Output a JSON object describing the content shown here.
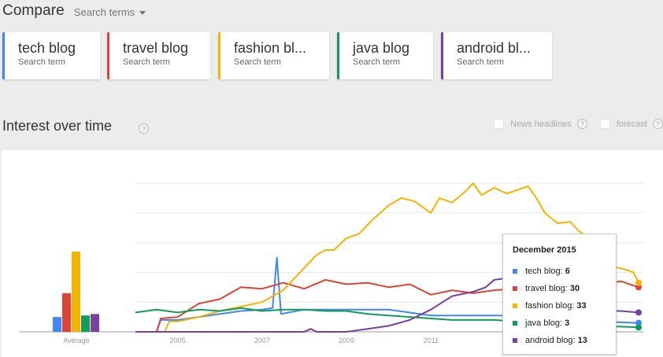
{
  "header": {
    "title": "Compare",
    "dropdown_label": "Search terms"
  },
  "terms": [
    {
      "label": "tech blog",
      "sub": "Search term",
      "color": "#4285f4"
    },
    {
      "label": "travel blog",
      "sub": "Search term",
      "color": "#db4437"
    },
    {
      "label": "fashion bl...",
      "sub": "Search term",
      "color": "#f4b400"
    },
    {
      "label": "java blog",
      "sub": "Search term",
      "color": "#0f9d58"
    },
    {
      "label": "android bl...",
      "sub": "Search term",
      "color": "#7b3f9e"
    }
  ],
  "section": {
    "title": "Interest over time",
    "help": "?",
    "options": [
      {
        "label": "News headlines",
        "checked": false
      },
      {
        "label": "forecast",
        "checked": false
      }
    ]
  },
  "tooltip": {
    "title": "December 2015",
    "rows": [
      {
        "name": "tech blog",
        "value": "6",
        "color": "#4285f4"
      },
      {
        "name": "travel blog",
        "value": "30",
        "color": "#db4437"
      },
      {
        "name": "fashion blog",
        "value": "33",
        "color": "#f4b400"
      },
      {
        "name": "java blog",
        "value": "3",
        "color": "#0f9d58"
      },
      {
        "name": "android blog",
        "value": "13",
        "color": "#7b3f9e"
      }
    ]
  },
  "chart_data": [
    {
      "type": "bar",
      "title": "Average",
      "categories": [
        "tech blog",
        "travel blog",
        "fashion blog",
        "java blog",
        "android blog"
      ],
      "values": [
        10,
        26,
        54,
        11,
        12
      ],
      "xlabel": "Average",
      "ylim": [
        0,
        100
      ]
    },
    {
      "type": "line",
      "title": "Interest over time",
      "xlabel": "",
      "ylabel": "",
      "x_ticks": [
        "2005",
        "2007",
        "2009",
        "2011"
      ],
      "x_range": [
        "Jan 2004",
        "Dec 2015"
      ],
      "ylim": [
        0,
        100
      ],
      "grid": true,
      "series": [
        {
          "name": "tech blog",
          "color": "#4285f4",
          "points": [
            [
              2004.0,
              0
            ],
            [
              2004.5,
              0
            ],
            [
              2004.6,
              8
            ],
            [
              2005.0,
              8
            ],
            [
              2005.5,
              10
            ],
            [
              2006.0,
              12
            ],
            [
              2006.5,
              14
            ],
            [
              2007.0,
              15
            ],
            [
              2007.25,
              16
            ],
            [
              2007.35,
              50
            ],
            [
              2007.45,
              12
            ],
            [
              2008.0,
              15
            ],
            [
              2009.0,
              15
            ],
            [
              2010.0,
              15
            ],
            [
              2011.0,
              11
            ],
            [
              2012.0,
              11
            ],
            [
              2013.0,
              11
            ],
            [
              2014.0,
              9
            ],
            [
              2015.0,
              7
            ],
            [
              2015.92,
              6
            ]
          ]
        },
        {
          "name": "travel blog",
          "color": "#db4437",
          "points": [
            [
              2004.0,
              0
            ],
            [
              2004.5,
              0
            ],
            [
              2004.6,
              9
            ],
            [
              2005.0,
              10
            ],
            [
              2005.5,
              19
            ],
            [
              2006.0,
              22
            ],
            [
              2006.5,
              30
            ],
            [
              2007.0,
              29
            ],
            [
              2007.5,
              33
            ],
            [
              2008.0,
              29
            ],
            [
              2008.5,
              35
            ],
            [
              2009.0,
              32
            ],
            [
              2009.5,
              33
            ],
            [
              2010.0,
              30
            ],
            [
              2010.5,
              32
            ],
            [
              2011.0,
              25
            ],
            [
              2011.5,
              28
            ],
            [
              2012.0,
              26
            ],
            [
              2012.5,
              28
            ],
            [
              2013.0,
              29
            ],
            [
              2013.5,
              32
            ],
            [
              2014.0,
              33
            ],
            [
              2014.5,
              32
            ],
            [
              2015.0,
              32
            ],
            [
              2015.5,
              34
            ],
            [
              2015.92,
              30
            ]
          ]
        },
        {
          "name": "fashion blog",
          "color": "#f4b400",
          "points": [
            [
              2004.0,
              0
            ],
            [
              2004.7,
              0
            ],
            [
              2004.8,
              7
            ],
            [
              2005.0,
              7
            ],
            [
              2005.5,
              10
            ],
            [
              2006.0,
              14
            ],
            [
              2006.5,
              17
            ],
            [
              2007.0,
              20
            ],
            [
              2007.5,
              28
            ],
            [
              2008.0,
              43
            ],
            [
              2008.3,
              52
            ],
            [
              2008.5,
              55
            ],
            [
              2008.7,
              55
            ],
            [
              2009.0,
              63
            ],
            [
              2009.3,
              66
            ],
            [
              2009.6,
              75
            ],
            [
              2010.0,
              85
            ],
            [
              2010.3,
              90
            ],
            [
              2010.6,
              88
            ],
            [
              2011.0,
              80
            ],
            [
              2011.2,
              90
            ],
            [
              2011.5,
              87
            ],
            [
              2011.8,
              94
            ],
            [
              2012.0,
              100
            ],
            [
              2012.2,
              92
            ],
            [
              2012.5,
              97
            ],
            [
              2012.8,
              93
            ],
            [
              2013.0,
              95
            ],
            [
              2013.3,
              98
            ],
            [
              2013.5,
              90
            ],
            [
              2013.7,
              80
            ],
            [
              2014.0,
              73
            ],
            [
              2014.3,
              74
            ],
            [
              2014.5,
              68
            ],
            [
              2014.8,
              62
            ],
            [
              2015.0,
              64
            ],
            [
              2015.3,
              44
            ],
            [
              2015.6,
              42
            ],
            [
              2015.8,
              40
            ],
            [
              2015.92,
              33
            ]
          ]
        },
        {
          "name": "java blog",
          "color": "#0f9d58",
          "points": [
            [
              2004.0,
              13
            ],
            [
              2004.5,
              15
            ],
            [
              2005.0,
              13
            ],
            [
              2005.5,
              15
            ],
            [
              2006.0,
              14
            ],
            [
              2006.5,
              16
            ],
            [
              2007.0,
              14
            ],
            [
              2007.5,
              15
            ],
            [
              2008.0,
              15
            ],
            [
              2008.5,
              14
            ],
            [
              2009.0,
              14
            ],
            [
              2009.5,
              12
            ],
            [
              2010.0,
              11
            ],
            [
              2010.5,
              10
            ],
            [
              2011.0,
              9
            ],
            [
              2011.5,
              8
            ],
            [
              2012.0,
              8
            ],
            [
              2012.5,
              8
            ],
            [
              2013.0,
              7
            ],
            [
              2013.5,
              6
            ],
            [
              2014.0,
              5
            ],
            [
              2014.5,
              4
            ],
            [
              2015.0,
              4
            ],
            [
              2015.92,
              3
            ]
          ]
        },
        {
          "name": "android blog",
          "color": "#7b3f9e",
          "points": [
            [
              2004.0,
              0
            ],
            [
              2008.0,
              0
            ],
            [
              2008.15,
              2
            ],
            [
              2008.3,
              0
            ],
            [
              2009.0,
              0
            ],
            [
              2009.5,
              2
            ],
            [
              2010.0,
              4
            ],
            [
              2010.5,
              8
            ],
            [
              2011.0,
              15
            ],
            [
              2011.5,
              24
            ],
            [
              2012.0,
              27
            ],
            [
              2012.3,
              30
            ],
            [
              2012.5,
              35
            ],
            [
              2013.0,
              37
            ],
            [
              2013.3,
              38
            ],
            [
              2013.6,
              32
            ],
            [
              2014.0,
              30
            ],
            [
              2014.5,
              30
            ],
            [
              2015.0,
              14
            ],
            [
              2015.5,
              14
            ],
            [
              2015.92,
              13
            ]
          ]
        }
      ],
      "tooltip": {
        "date": "December 2015",
        "values": {
          "tech blog": 6,
          "travel blog": 30,
          "fashion blog": 33,
          "java blog": 3,
          "android blog": 13
        }
      }
    }
  ]
}
